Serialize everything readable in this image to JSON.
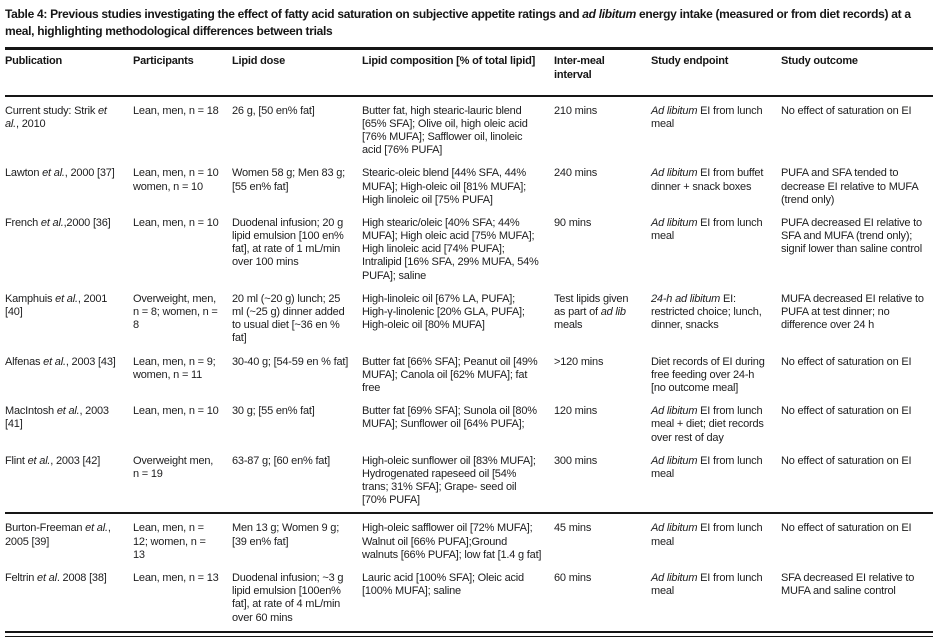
{
  "title": "Table 4: Previous studies investigating the effect of fatty acid saturation on subjective appetite ratings and *ad libitum* energy intake (measured or from diet records) at a meal, highlighting methodological differences between trials",
  "table": {
    "columns": [
      "Publication",
      "Participants",
      "Lipid dose",
      "Lipid composition [% of total lipid]",
      "Inter-meal interval",
      "Study endpoint",
      "Study outcome"
    ],
    "sections": [
      {
        "rows": [
          {
            "publication": "Current study: Strik *et al.*, 2010",
            "participants": "Lean, men, n = 18",
            "lipid_dose": "26 g, [50 en% fat]",
            "lipid_composition": "Butter fat, high stearic-lauric blend [65% SFA]; Olive oil, high oleic acid [76% MUFA]; Safflower oil, linoleic acid [76% PUFA]",
            "inter_meal_interval": "210 mins",
            "study_endpoint": "*Ad libitum* EI from lunch meal",
            "study_outcome": "No effect of saturation on EI"
          },
          {
            "publication": "Lawton *et al.*, 2000 [37]",
            "participants": "Lean, men, n = 10 women, n = 10",
            "lipid_dose": "Women 58 g; Men 83 g; [55 en% fat]",
            "lipid_composition": "Stearic-oleic blend [44% SFA, 44% MUFA]; High-oleic oil [81% MUFA]; High linoleic oil [75% PUFA]",
            "inter_meal_interval": "240 mins",
            "study_endpoint": "*Ad libitum* EI from buffet dinner + snack boxes",
            "study_outcome": "PUFA and SFA tended to decrease EI relative to MUFA (trend only)"
          },
          {
            "publication": "French *et al.*,2000 [36]",
            "participants": "Lean, men, n = 10",
            "lipid_dose": "Duodenal infusion; 20 g lipid emulsion [100 en% fat], at rate of 1 mL/min over 100 mins",
            "lipid_composition": "High stearic/oleic [40% SFA; 44% MUFA]; High oleic acid [75% MUFA]; High linoleic acid [74% PUFA]; Intralipid [16% SFA, 29% MUFA, 54% PUFA]; saline",
            "inter_meal_interval": "90 mins",
            "study_endpoint": "*Ad libitum* EI from lunch meal",
            "study_outcome": "PUFA decreased EI relative to SFA and MUFA (trend only); signif lower than saline control"
          },
          {
            "publication": "Kamphuis *et al.*, 2001 [40]",
            "participants": "Overweight, men, n = 8; women, n = 8",
            "lipid_dose": "20 ml (~20 g) lunch; 25 ml (~25 g) dinner added to usual diet [~36 en % fat]",
            "lipid_composition": "High-linoleic oil [67% LA, PUFA]; High-γ-linolenic [20% GLA, PUFA]; High-oleic oil [80% MUFA]",
            "inter_meal_interval": "Test lipids given as part of *ad lib* meals",
            "study_endpoint": "*24-h ad libitum* EI: restricted choice; lunch, dinner, snacks",
            "study_outcome": "MUFA decreased EI relative to PUFA at test dinner; no difference over 24 h"
          },
          {
            "publication": "Alfenas *et al.*, 2003 [43]",
            "participants": "Lean, men, n = 9; women, n = 11",
            "lipid_dose": "30-40 g; [54-59 en % fat]",
            "lipid_composition": "Butter fat [66% SFA]; Peanut oil [49% MUFA]; Canola oil [62% MUFA]; fat free",
            "inter_meal_interval": ">120 mins",
            "study_endpoint": "Diet records of EI during free feeding over 24-h [no outcome meal]",
            "study_outcome": "No effect of saturation on EI"
          },
          {
            "publication": "MacIntosh *et al.*, 2003 [41]",
            "participants": "Lean, men, n = 10",
            "lipid_dose": "30 g; [55 en% fat]",
            "lipid_composition": "Butter fat [69% SFA]; Sunola oil [80% MUFA]; Sunflower oil [64% PUFA];",
            "inter_meal_interval": "120 mins",
            "study_endpoint": "*Ad libitum* EI from lunch meal + diet; diet records over rest of day",
            "study_outcome": "No effect of saturation on EI"
          },
          {
            "publication": "Flint *et al.*, 2003 [42]",
            "participants": "Overweight men, n = 19",
            "lipid_dose": "63-87 g; [60 en% fat]",
            "lipid_composition": "High-oleic sunflower oil [83% MUFA]; Hydrogenated rapeseed oil [54% trans; 31% SFA]; Grape- seed oil [70% PUFA]",
            "inter_meal_interval": "300 mins",
            "study_endpoint": "*Ad libitum* EI from lunch meal",
            "study_outcome": "No effect of saturation on EI"
          }
        ]
      },
      {
        "rows": [
          {
            "publication": "Burton-Freeman *et al.*, 2005 [39]",
            "participants": "Lean, men, n = 12; women, n = 13",
            "lipid_dose": "Men 13 g; Women 9 g; [39 en% fat]",
            "lipid_composition": "High-oleic safflower oil [72% MUFA]; Walnut oil [66% PUFA];Ground walnuts [66% PUFA]; low fat [1.4 g fat]",
            "inter_meal_interval": "45 mins",
            "study_endpoint": "*Ad libitum* EI from lunch meal",
            "study_outcome": "No effect of saturation on EI"
          },
          {
            "publication": "Feltrin *et al*. 2008 [38]",
            "participants": "Lean, men, n = 13",
            "lipid_dose": "Duodenal infusion; ~3 g lipid emulsion [100en% fat], at rate of 4 mL/min over 60 mins",
            "lipid_composition": "Lauric acid [100% SFA]; Oleic acid [100% MUFA]; saline",
            "inter_meal_interval": "60 mins",
            "study_endpoint": "*Ad libitum* EI from lunch meal",
            "study_outcome": "SFA decreased EI relative to MUFA and saline control"
          }
        ]
      }
    ]
  }
}
